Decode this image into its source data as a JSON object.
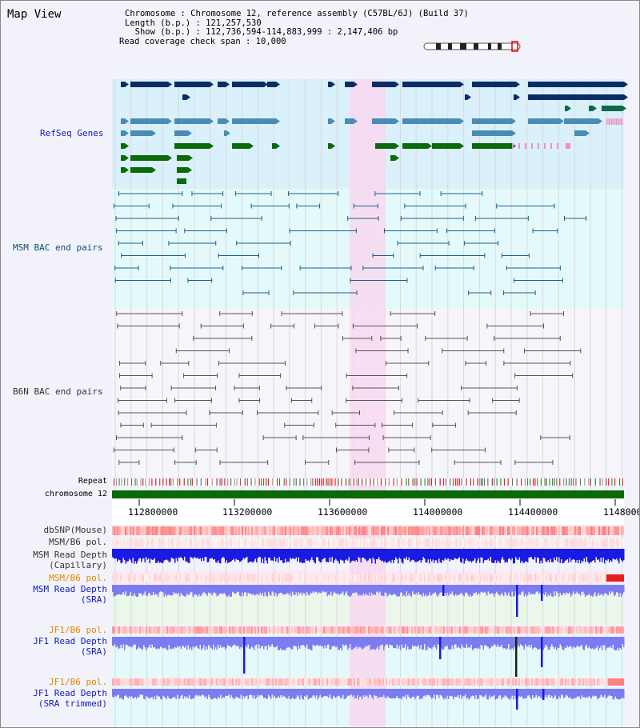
{
  "title": "Map View",
  "info": {
    "chromosome": "Chromosome    : Chromosome 12, reference assembly (C57BL/6J) (Build 37)",
    "length": "Length (b.p.) : 121,257,530",
    "show": "  Show (b.p.) : 112,736,594-114,883,999 : 2,147,406 bp",
    "coverage": "Read coverage check span : 10,000"
  },
  "tracks": {
    "refseq": "RefSeq Genes",
    "msm_bac": "MSM BAC end pairs",
    "b6n_bac": "B6N BAC end pairs",
    "repeat": "Repeat",
    "chromosome": "chromosome 12",
    "dbsnp": "dbSNP(Mouse)",
    "msm_b6_pol_1": "MSM/B6 pol.",
    "msm_read_depth_cap_1": "MSM Read Depth",
    "msm_read_depth_cap_2": "(Capillary)",
    "msm_b6_pol_2": "MSM/B6 pol.",
    "msm_read_depth_sra_1": "MSM Read Depth",
    "msm_read_depth_sra_2": "(SRA)",
    "jf1_b6_pol_1": "JF1/B6 pol.",
    "jf1_read_depth_sra_1": "JF1 Read Depth",
    "jf1_read_depth_sra_2": "(SRA)",
    "jf1_b6_pol_2": "JF1/B6 pol.",
    "jf1_read_depth_trim_1": "JF1 Read Depth",
    "jf1_read_depth_trim_2": "(SRA trimmed)"
  },
  "axis_ticks": [
    "112800000",
    "113200000",
    "113600000",
    "114000000",
    "114400000",
    "1148000"
  ],
  "colors": {
    "refseq_bg": "#daf0fa",
    "msm_bg": "#e4fafa",
    "highlight": "#f9d8f0",
    "gene_navy": "#0a2e64",
    "gene_steel": "#4a8cb4",
    "gene_green": "#0a6a0a",
    "bac_blue": "#1a6090",
    "bac_gray": "#555555",
    "depth_blue": "#1a1ae0",
    "depth_light": "#7c7cf0",
    "chromosome_green": "#0a6a0a"
  }
}
